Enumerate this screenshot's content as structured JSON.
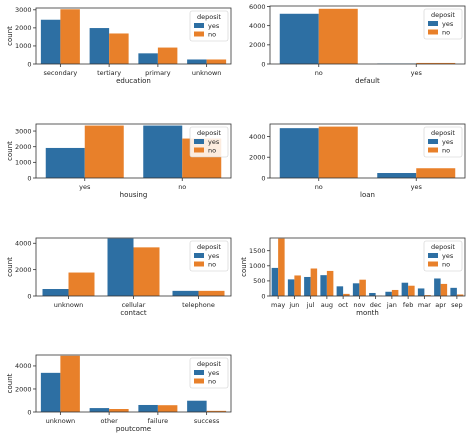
{
  "colors": {
    "yes": "#2d6fa3",
    "no": "#e8802a"
  },
  "legend": {
    "title": "deposit",
    "labels": [
      "yes",
      "no"
    ]
  },
  "chart_data": [
    {
      "type": "bar",
      "xlabel": "education",
      "ylabel": "count",
      "categories": [
        "secondary",
        "tertiary",
        "primary",
        "unknown"
      ],
      "series": [
        {
          "name": "yes",
          "values": [
            2450,
            1990,
            590,
            250
          ]
        },
        {
          "name": "no",
          "values": [
            3030,
            1690,
            910,
            250
          ]
        }
      ],
      "yticks": [
        0,
        1000,
        2000,
        3000
      ],
      "ylim": [
        0,
        3100
      ],
      "legend_position": "top-right"
    },
    {
      "type": "bar",
      "xlabel": "default",
      "ylabel": "",
      "categories": [
        "no",
        "yes"
      ],
      "series": [
        {
          "name": "yes",
          "values": [
            5240,
            50
          ]
        },
        {
          "name": "no",
          "values": [
            5760,
            110
          ]
        }
      ],
      "yticks": [
        0,
        2000,
        4000,
        6000
      ],
      "ylim": [
        0,
        6050
      ],
      "legend_position": "top-right"
    },
    {
      "type": "bar",
      "xlabel": "housing",
      "ylabel": "count",
      "categories": [
        "yes",
        "no"
      ],
      "series": [
        {
          "name": "yes",
          "values": [
            1920,
            3350
          ]
        },
        {
          "name": "no",
          "values": [
            3350,
            2520
          ]
        }
      ],
      "yticks": [
        0,
        1000,
        2000,
        3000
      ],
      "ylim": [
        0,
        3450
      ],
      "legend_position": "top-right"
    },
    {
      "type": "bar",
      "xlabel": "loan",
      "ylabel": "",
      "categories": [
        "no",
        "yes"
      ],
      "series": [
        {
          "name": "yes",
          "values": [
            4800,
            480
          ]
        },
        {
          "name": "no",
          "values": [
            4950,
            940
          ]
        }
      ],
      "yticks": [
        0,
        2000,
        4000
      ],
      "ylim": [
        0,
        5200
      ],
      "legend_position": "top-right"
    },
    {
      "type": "bar",
      "xlabel": "contact",
      "ylabel": "count",
      "categories": [
        "unknown",
        "cellular",
        "telephone"
      ],
      "series": [
        {
          "name": "yes",
          "values": [
            530,
            4360,
            390
          ]
        },
        {
          "name": "no",
          "values": [
            1780,
            3690,
            390
          ]
        }
      ],
      "yticks": [
        0,
        2000,
        4000
      ],
      "ylim": [
        0,
        4400
      ],
      "legend_position": "top-right"
    },
    {
      "type": "bar",
      "xlabel": "month",
      "ylabel": "count",
      "categories": [
        "may",
        "jun",
        "jul",
        "aug",
        "oct",
        "nov",
        "dec",
        "jan",
        "feb",
        "mar",
        "apr",
        "sep"
      ],
      "series": [
        {
          "name": "yes",
          "values": [
            930,
            550,
            630,
            690,
            320,
            420,
            100,
            140,
            440,
            250,
            580,
            270
          ]
        },
        {
          "name": "no",
          "values": [
            1900,
            680,
            910,
            830,
            70,
            540,
            10,
            200,
            340,
            30,
            400,
            50
          ]
        }
      ],
      "yticks": [
        0,
        500,
        1000,
        1500
      ],
      "ylim": [
        0,
        1920
      ],
      "legend_position": "top-right"
    },
    {
      "type": "bar",
      "xlabel": "poutcome",
      "ylabel": "count",
      "categories": [
        "unknown",
        "other",
        "failure",
        "success"
      ],
      "series": [
        {
          "name": "yes",
          "values": [
            3400,
            340,
            610,
            980
          ]
        },
        {
          "name": "no",
          "values": [
            4880,
            260,
            590,
            100
          ]
        }
      ],
      "yticks": [
        0,
        2000,
        4000
      ],
      "ylim": [
        0,
        4950
      ],
      "legend_position": "top-right"
    }
  ]
}
